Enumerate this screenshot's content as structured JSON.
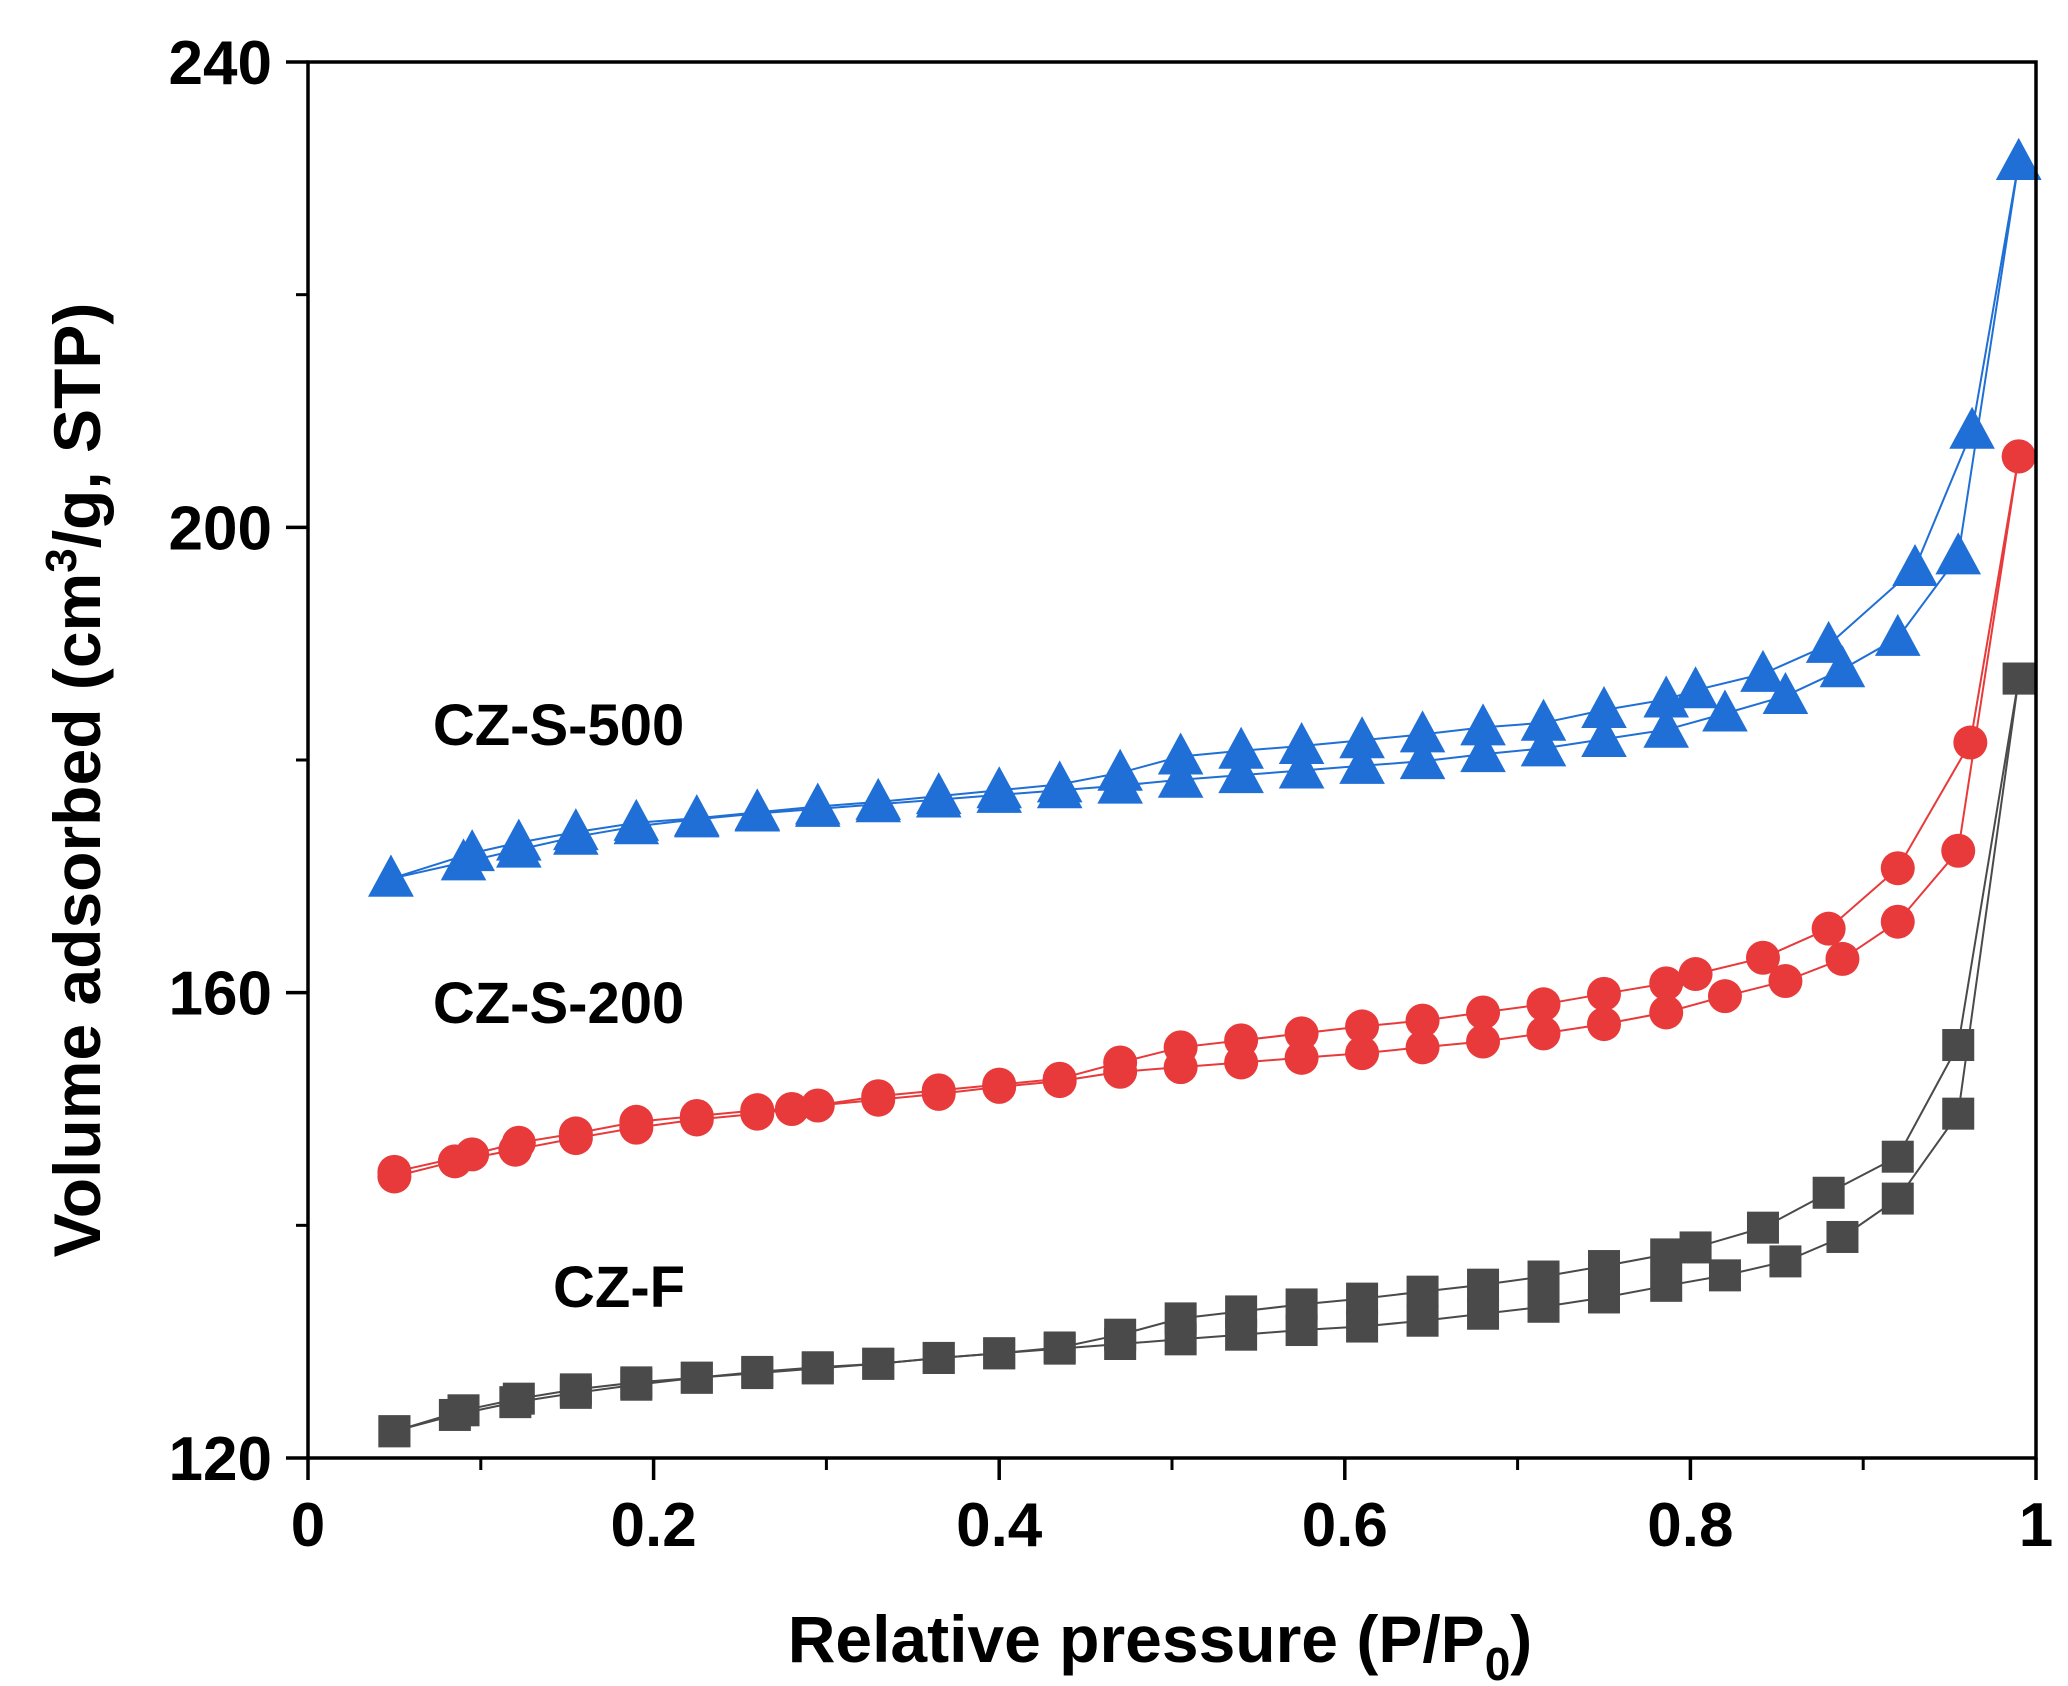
{
  "chart_data": {
    "type": "line",
    "xlabel": "Relative pressure (P/P",
    "xlabel_sub": "0",
    "xlabel_end": ")",
    "ylabel": "Volume adsorbed (cm",
    "ylabel_sup": "3",
    "ylabel_end": "/g, STP)",
    "xlim": [
      0,
      1
    ],
    "ylim": [
      120,
      240
    ],
    "xticks": [
      {
        "value": 0,
        "label": "0"
      },
      {
        "value": 0.2,
        "label": "0.2"
      },
      {
        "value": 0.4,
        "label": "0.4"
      },
      {
        "value": 0.6,
        "label": "0.6"
      },
      {
        "value": 0.8,
        "label": "0.8"
      },
      {
        "value": 1,
        "label": "1"
      }
    ],
    "yticks": [
      {
        "value": 120,
        "label": "120"
      },
      {
        "value": 160,
        "label": "160"
      },
      {
        "value": 200,
        "label": "200"
      },
      {
        "value": 240,
        "label": "240"
      }
    ],
    "grid": false,
    "legend": "inline labels",
    "series": [
      {
        "name": "CZ-S-500",
        "color": "#1f6fd6",
        "marker": "triangle",
        "label_pos": {
          "x": 0.145,
          "y": 181.3
        },
        "adsorption": [
          [
            0.048,
            169.8
          ],
          [
            0.09,
            171.2
          ],
          [
            0.122,
            172.3
          ],
          [
            0.155,
            173.4
          ],
          [
            0.19,
            174.3
          ],
          [
            0.225,
            174.9
          ],
          [
            0.26,
            175.4
          ],
          [
            0.295,
            175.8
          ],
          [
            0.33,
            176.2
          ],
          [
            0.365,
            176.6
          ],
          [
            0.4,
            177.0
          ],
          [
            0.435,
            177.4
          ],
          [
            0.47,
            177.8
          ],
          [
            0.505,
            178.3
          ],
          [
            0.54,
            178.7
          ],
          [
            0.575,
            179.1
          ],
          [
            0.61,
            179.5
          ],
          [
            0.645,
            179.9
          ],
          [
            0.68,
            180.5
          ],
          [
            0.715,
            181.0
          ],
          [
            0.75,
            181.8
          ],
          [
            0.786,
            182.6
          ],
          [
            0.82,
            184.0
          ],
          [
            0.855,
            185.5
          ],
          [
            0.888,
            187.8
          ],
          [
            0.92,
            190.5
          ],
          [
            0.955,
            197.5
          ],
          [
            0.99,
            231.4
          ]
        ],
        "desorption": [
          [
            0.99,
            231.4
          ],
          [
            0.963,
            208.3
          ],
          [
            0.93,
            196.5
          ],
          [
            0.88,
            189.9
          ],
          [
            0.842,
            187.4
          ],
          [
            0.803,
            186.0
          ],
          [
            0.786,
            185.2
          ],
          [
            0.75,
            184.3
          ],
          [
            0.715,
            183.2
          ],
          [
            0.68,
            182.8
          ],
          [
            0.645,
            182.2
          ],
          [
            0.61,
            181.7
          ],
          [
            0.575,
            181.2
          ],
          [
            0.54,
            180.8
          ],
          [
            0.505,
            180.3
          ],
          [
            0.47,
            178.9
          ],
          [
            0.435,
            177.9
          ],
          [
            0.4,
            177.4
          ],
          [
            0.365,
            176.9
          ],
          [
            0.33,
            176.4
          ],
          [
            0.295,
            176.0
          ],
          [
            0.26,
            175.5
          ],
          [
            0.225,
            175.0
          ],
          [
            0.19,
            174.6
          ],
          [
            0.155,
            173.8
          ],
          [
            0.122,
            172.9
          ],
          [
            0.095,
            172.0
          ],
          [
            0.048,
            169.8
          ]
        ]
      },
      {
        "name": "CZ-S-200",
        "color": "#e83a3a",
        "marker": "circle",
        "label_pos": {
          "x": 0.145,
          "y": 157.4
        },
        "adsorption": [
          [
            0.05,
            144.2
          ],
          [
            0.085,
            145.5
          ],
          [
            0.12,
            146.5
          ],
          [
            0.155,
            147.5
          ],
          [
            0.19,
            148.4
          ],
          [
            0.225,
            149.1
          ],
          [
            0.26,
            149.6
          ],
          [
            0.295,
            150.3
          ],
          [
            0.33,
            150.8
          ],
          [
            0.365,
            151.3
          ],
          [
            0.4,
            151.9
          ],
          [
            0.435,
            152.4
          ],
          [
            0.47,
            153.2
          ],
          [
            0.505,
            153.6
          ],
          [
            0.54,
            154.0
          ],
          [
            0.575,
            154.4
          ],
          [
            0.61,
            154.8
          ],
          [
            0.645,
            155.3
          ],
          [
            0.68,
            155.8
          ],
          [
            0.715,
            156.5
          ],
          [
            0.75,
            157.3
          ],
          [
            0.786,
            158.3
          ],
          [
            0.82,
            159.7
          ],
          [
            0.855,
            161.0
          ],
          [
            0.888,
            162.9
          ],
          [
            0.92,
            166.1
          ],
          [
            0.955,
            172.2
          ],
          [
            0.99,
            206.1
          ]
        ],
        "desorption": [
          [
            0.99,
            206.1
          ],
          [
            0.962,
            181.5
          ],
          [
            0.92,
            170.7
          ],
          [
            0.88,
            165.5
          ],
          [
            0.842,
            163.0
          ],
          [
            0.803,
            161.6
          ],
          [
            0.786,
            160.8
          ],
          [
            0.75,
            159.9
          ],
          [
            0.715,
            159.0
          ],
          [
            0.68,
            158.3
          ],
          [
            0.645,
            157.6
          ],
          [
            0.61,
            157.1
          ],
          [
            0.575,
            156.5
          ],
          [
            0.54,
            155.9
          ],
          [
            0.505,
            155.3
          ],
          [
            0.47,
            154.0
          ],
          [
            0.435,
            152.6
          ],
          [
            0.4,
            152.1
          ],
          [
            0.365,
            151.6
          ],
          [
            0.33,
            151.1
          ],
          [
            0.28,
            150.0
          ],
          [
            0.26,
            149.9
          ],
          [
            0.225,
            149.4
          ],
          [
            0.19,
            148.9
          ],
          [
            0.155,
            147.9
          ],
          [
            0.122,
            147.1
          ],
          [
            0.095,
            146.1
          ],
          [
            0.05,
            144.6
          ]
        ]
      },
      {
        "name": "CZ-F",
        "color": "#4a4a4a",
        "marker": "square",
        "label_pos": {
          "x": 0.18,
          "y": 133.0
        },
        "adsorption": [
          [
            0.05,
            122.3
          ],
          [
            0.085,
            123.7
          ],
          [
            0.12,
            124.8
          ],
          [
            0.155,
            125.6
          ],
          [
            0.19,
            126.3
          ],
          [
            0.225,
            126.9
          ],
          [
            0.26,
            127.3
          ],
          [
            0.295,
            127.7
          ],
          [
            0.33,
            128.1
          ],
          [
            0.365,
            128.6
          ],
          [
            0.4,
            129.0
          ],
          [
            0.435,
            129.4
          ],
          [
            0.47,
            129.8
          ],
          [
            0.505,
            130.2
          ],
          [
            0.54,
            130.6
          ],
          [
            0.575,
            131.0
          ],
          [
            0.61,
            131.3
          ],
          [
            0.645,
            131.8
          ],
          [
            0.68,
            132.4
          ],
          [
            0.715,
            133.0
          ],
          [
            0.75,
            133.8
          ],
          [
            0.786,
            134.8
          ],
          [
            0.82,
            135.7
          ],
          [
            0.855,
            136.9
          ],
          [
            0.888,
            139.0
          ],
          [
            0.92,
            142.3
          ],
          [
            0.955,
            149.6
          ],
          [
            0.99,
            187.0
          ]
        ],
        "desorption": [
          [
            0.99,
            187.0
          ],
          [
            0.955,
            155.5
          ],
          [
            0.92,
            145.9
          ],
          [
            0.88,
            142.8
          ],
          [
            0.842,
            139.8
          ],
          [
            0.803,
            138.1
          ],
          [
            0.786,
            137.5
          ],
          [
            0.75,
            136.5
          ],
          [
            0.715,
            135.6
          ],
          [
            0.68,
            134.9
          ],
          [
            0.645,
            134.3
          ],
          [
            0.61,
            133.7
          ],
          [
            0.575,
            133.2
          ],
          [
            0.54,
            132.6
          ],
          [
            0.505,
            132.0
          ],
          [
            0.47,
            130.6
          ],
          [
            0.435,
            129.5
          ],
          [
            0.4,
            129.0
          ],
          [
            0.365,
            128.6
          ],
          [
            0.33,
            128.1
          ],
          [
            0.295,
            127.8
          ],
          [
            0.26,
            127.4
          ],
          [
            0.225,
            126.9
          ],
          [
            0.19,
            126.5
          ],
          [
            0.155,
            125.9
          ],
          [
            0.122,
            125.1
          ],
          [
            0.09,
            124.1
          ],
          [
            0.05,
            122.3
          ]
        ]
      }
    ]
  }
}
